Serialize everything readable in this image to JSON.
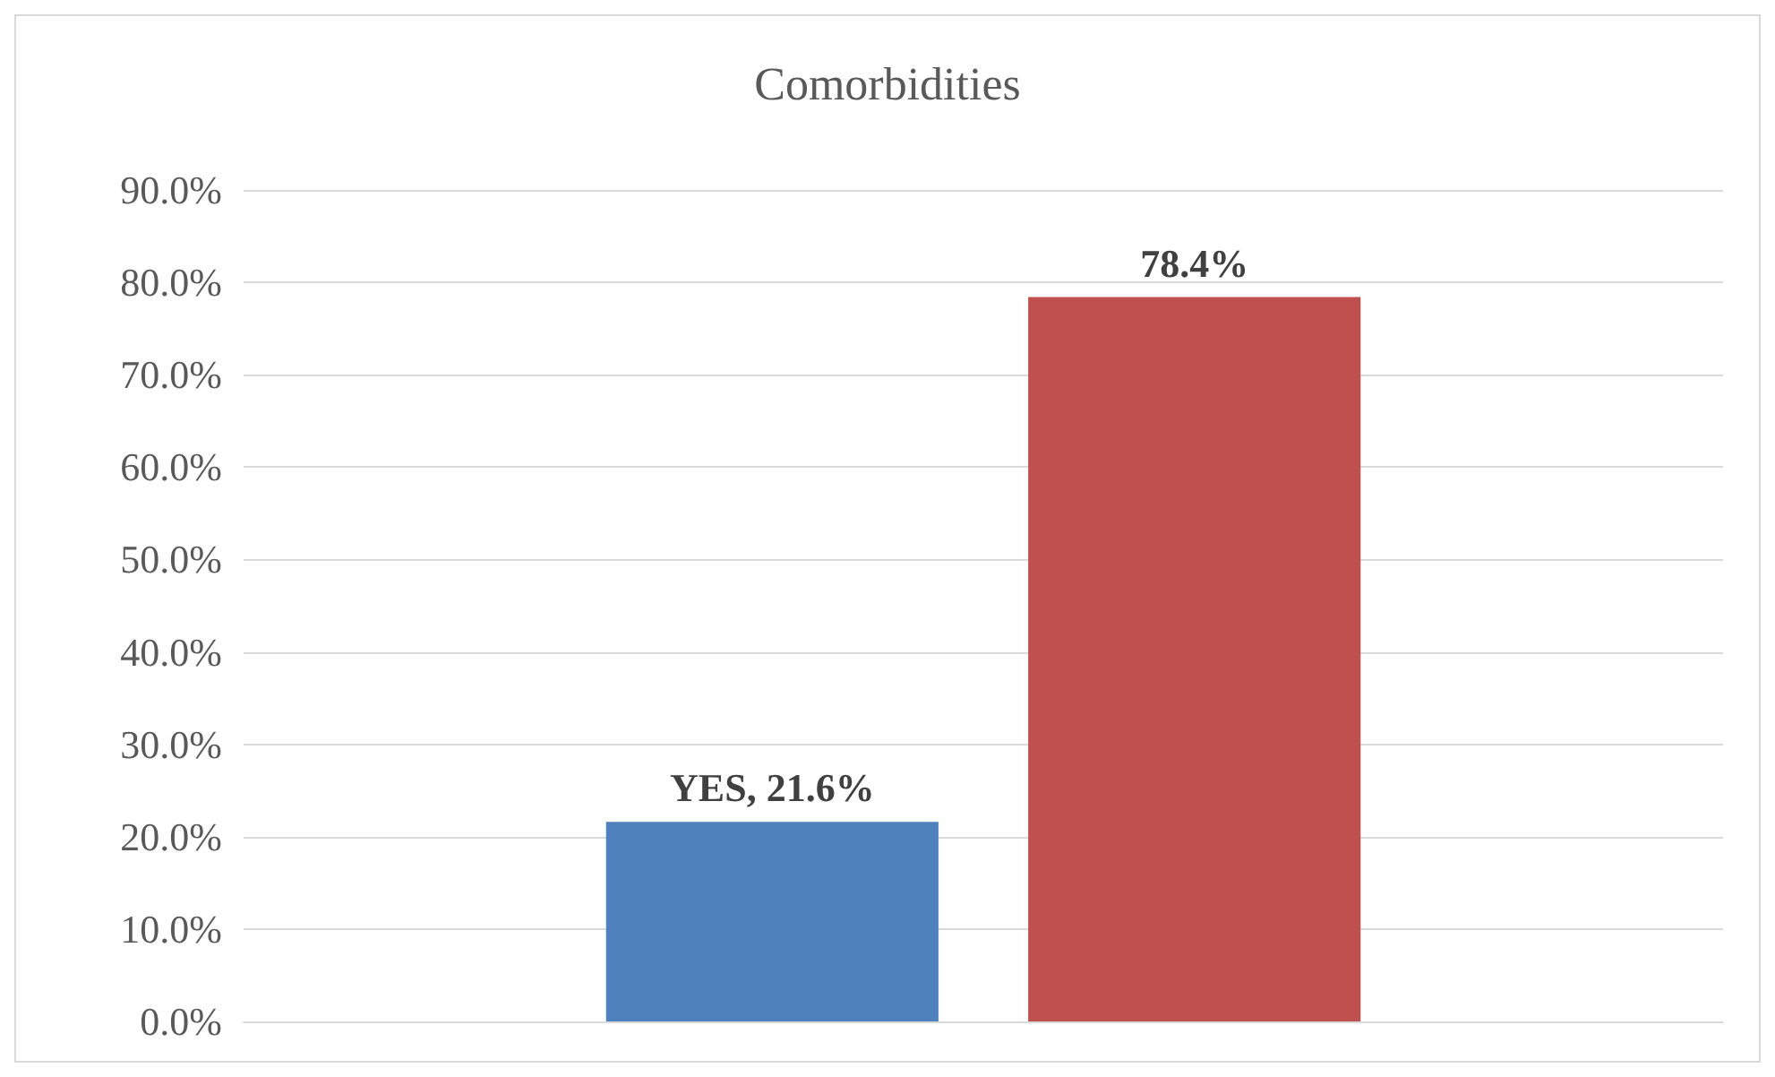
{
  "chart_data": {
    "type": "bar",
    "title": "Comorbidities",
    "categories": [
      null
    ],
    "series": [
      {
        "color": "#4f81bd",
        "values": [
          21.6
        ],
        "value_labels": [
          "YES, 21.6%"
        ]
      },
      {
        "color": "#c0504d",
        "values": [
          78.4
        ],
        "value_labels": [
          "78.4%"
        ]
      }
    ],
    "ylim": [
      0,
      90
    ],
    "yticks": [
      {
        "value": 0,
        "label": "0.0%"
      },
      {
        "value": 10,
        "label": "10.0%"
      },
      {
        "value": 20,
        "label": "20.0%"
      },
      {
        "value": 30,
        "label": "30.0%"
      },
      {
        "value": 40,
        "label": "40.0%"
      },
      {
        "value": 50,
        "label": "50.0%"
      },
      {
        "value": 60,
        "label": "60.0%"
      },
      {
        "value": 70,
        "label": "70.0%"
      },
      {
        "value": 80,
        "label": "80.0%"
      },
      {
        "value": 90,
        "label": "90.0%"
      }
    ],
    "grid": "y"
  }
}
